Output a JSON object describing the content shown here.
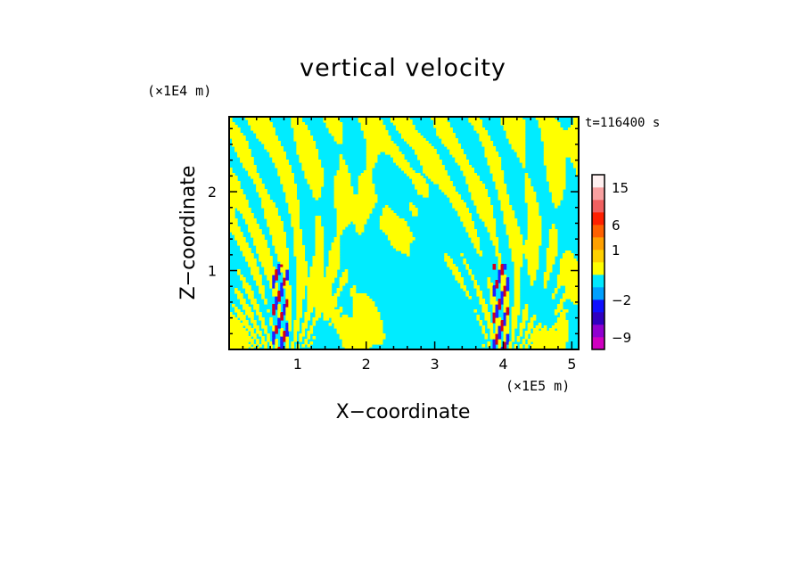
{
  "chart_data": {
    "type": "heatmap",
    "title": "vertical velocity",
    "xlabel": "X−coordinate",
    "ylabel": "Z−coordinate",
    "x_unit": "(×1E5 m)",
    "y_unit": "(×1E4 m)",
    "time_label": "t=116400 s",
    "xlim": [
      0.0,
      5.1
    ],
    "ylim": [
      0.0,
      2.95
    ],
    "x_ticks": [
      1,
      2,
      3,
      4,
      5
    ],
    "y_ticks": [
      1,
      2
    ],
    "colorbar": {
      "labels": [
        {
          "text": "15",
          "value": 15
        },
        {
          "text": "6",
          "value": 6
        },
        {
          "text": "1",
          "value": 1
        },
        {
          "text": "−2",
          "value": -2
        },
        {
          "text": "−9",
          "value": -9
        }
      ],
      "levels": [
        {
          "value": -12,
          "color": "#ff00a0"
        },
        {
          "value": -9,
          "color": "#d000c0"
        },
        {
          "value": -6,
          "color": "#9000d0"
        },
        {
          "value": -3,
          "color": "#3000c0"
        },
        {
          "value": -2,
          "color": "#1010ff"
        },
        {
          "value": -1,
          "color": "#00a0ff"
        },
        {
          "value": 0,
          "color": "#00e8ff"
        },
        {
          "value": 0.5,
          "color": "#ffff00"
        },
        {
          "value": 1,
          "color": "#ffd000"
        },
        {
          "value": 2,
          "color": "#ffa000"
        },
        {
          "value": 6,
          "color": "#ff6000"
        },
        {
          "value": 9,
          "color": "#ff2000"
        },
        {
          "value": 12,
          "color": "#f06060"
        },
        {
          "value": 15,
          "color": "#f8a0a0"
        },
        {
          "value": 18,
          "color": "#fff0f0"
        }
      ]
    },
    "field_colors": {
      "positive": "#ffff00",
      "negative": "#00ecff",
      "strong_negative": "#2020ff",
      "strong_positive": "#d00020"
    },
    "mountain_centers_x": [
      0.75,
      3.95
    ]
  }
}
